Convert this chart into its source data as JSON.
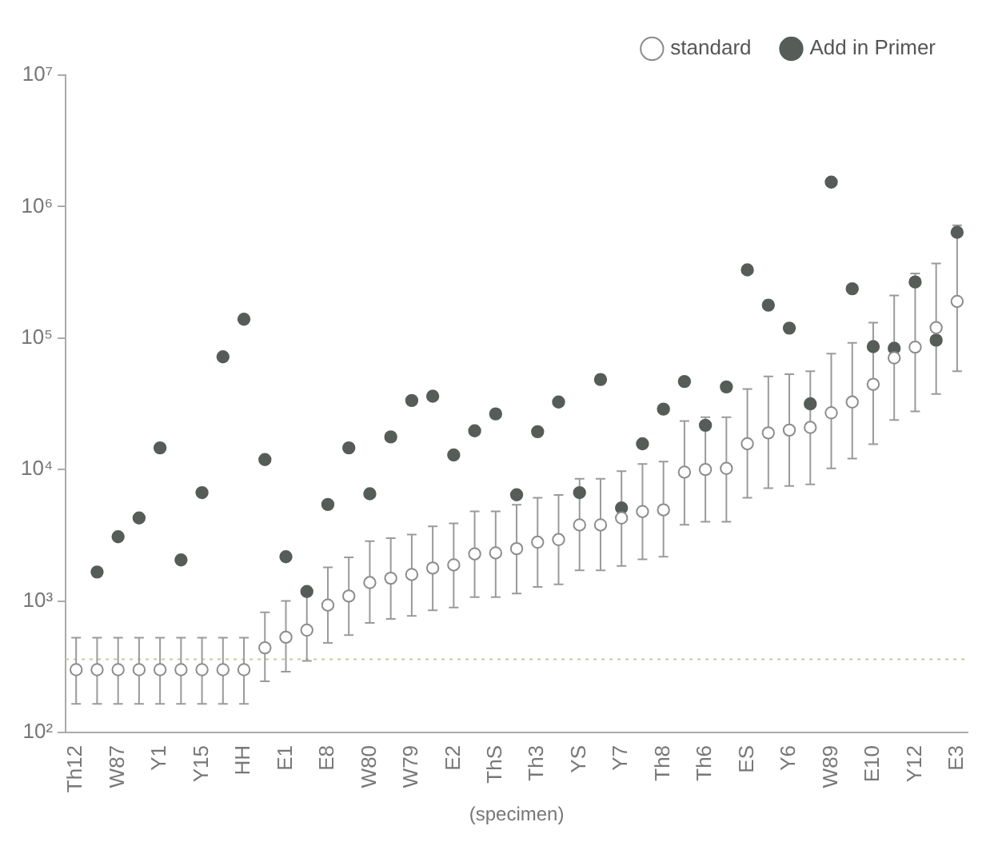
{
  "chart_data": {
    "type": "scatter",
    "xlabel": "(specimen)",
    "log": "y",
    "legend": "top right",
    "marker": "circle",
    "grid": false,
    "categories": [
      "Th12",
      null,
      "W87",
      null,
      "Y1",
      null,
      "Y15",
      null,
      "HH",
      null,
      "E1",
      null,
      "E8",
      null,
      "W80",
      null,
      "W79",
      null,
      "E2",
      null,
      "ThS",
      null,
      "Th3",
      null,
      "YS",
      null,
      "Y7",
      null,
      "Th8",
      null,
      "Th6",
      null,
      "ES",
      null,
      "Y6",
      null,
      "W89",
      null,
      "E10",
      null,
      "Y12",
      null,
      "E3"
    ],
    "ylim": [
      100,
      10000000
    ],
    "yticks": [
      {
        "value": 100,
        "label": "10²"
      },
      {
        "value": 1000,
        "label": "10³"
      },
      {
        "value": 10000,
        "label": "10⁴"
      },
      {
        "value": 100000,
        "label": "10⁵"
      },
      {
        "value": 1000000,
        "label": "10⁶"
      },
      {
        "value": 10000000,
        "label": "10⁷"
      }
    ],
    "ref_lines": [
      {
        "axis": "y",
        "value": 360,
        "line_style": "dotted",
        "color": "#c8c8a0"
      }
    ],
    "series": [
      {
        "name": "standard",
        "color": "#ffffff",
        "values": [
          300,
          300,
          300,
          300,
          300,
          300,
          300,
          300,
          300,
          440,
          530,
          600,
          930,
          1090,
          1380,
          1490,
          1590,
          1780,
          1880,
          2280,
          2320,
          2500,
          2800,
          2930,
          3790,
          3790,
          4280,
          4790,
          4930,
          9550,
          10000,
          10200,
          15700,
          19000,
          19950,
          20900,
          27000,
          32600,
          44500,
          70700,
          85300,
          120000,
          190000
        ],
        "errors": [
          [
            165,
            525
          ],
          [
            165,
            525
          ],
          [
            165,
            525
          ],
          [
            165,
            525
          ],
          [
            165,
            525
          ],
          [
            165,
            525
          ],
          [
            165,
            525
          ],
          [
            165,
            525
          ],
          [
            165,
            525
          ],
          [
            245,
            820
          ],
          [
            290,
            1000
          ],
          [
            350,
            1150
          ],
          [
            480,
            1800
          ],
          [
            550,
            2150
          ],
          [
            680,
            2850
          ],
          [
            730,
            3000
          ],
          [
            770,
            3200
          ],
          [
            850,
            3700
          ],
          [
            890,
            3900
          ],
          [
            1070,
            4800
          ],
          [
            1070,
            4800
          ],
          [
            1140,
            5400
          ],
          [
            1280,
            6100
          ],
          [
            1340,
            6400
          ],
          [
            1710,
            8500
          ],
          [
            1710,
            8500
          ],
          [
            1850,
            9700
          ],
          [
            2070,
            11000
          ],
          [
            2170,
            11500
          ],
          [
            3800,
            23400
          ],
          [
            4000,
            25000
          ],
          [
            4000,
            25000
          ],
          [
            6100,
            41000
          ],
          [
            7200,
            51000
          ],
          [
            7500,
            53000
          ],
          [
            7700,
            56000
          ],
          [
            10200,
            76000
          ],
          [
            12100,
            92000
          ],
          [
            15600,
            131000
          ],
          [
            23800,
            211000
          ],
          [
            27700,
            310000
          ],
          [
            37500,
            369000
          ],
          [
            56000,
            720000
          ]
        ]
      },
      {
        "name": "Add in Primer",
        "color": "#565d59",
        "values": [
          null,
          1660,
          3080,
          4280,
          14600,
          2050,
          6670,
          72000,
          139000,
          11900,
          2170,
          1180,
          5420,
          14600,
          6540,
          17700,
          33500,
          36100,
          12900,
          19700,
          26500,
          6430,
          19400,
          32600,
          6670,
          48400,
          5100,
          15700,
          28800,
          46700,
          21700,
          42500,
          330000,
          178000,
          119000,
          31600,
          1535000,
          237000,
          86100,
          83700,
          267000,
          96400,
          638000
        ]
      }
    ]
  }
}
